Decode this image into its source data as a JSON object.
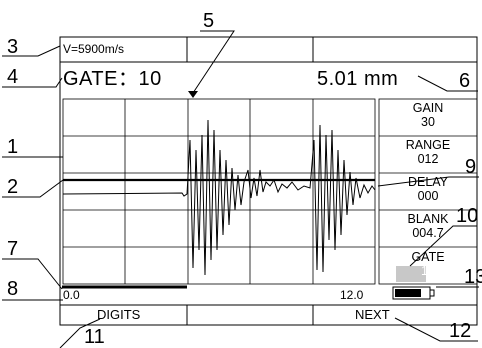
{
  "header": {
    "velocity": "V=5900m/s",
    "gate_label": "GATE：",
    "gate_value": "10",
    "thickness": "5.01 mm"
  },
  "side_panel": [
    {
      "label": "GAIN",
      "value": "30",
      "highlight": false
    },
    {
      "label": "RANGE",
      "value": "012",
      "highlight": false
    },
    {
      "label": "DELAY",
      "value": "000",
      "highlight": false
    },
    {
      "label": "BLANK",
      "value": "004.7",
      "highlight": false
    },
    {
      "label": "GATE",
      "value": "10",
      "highlight": true
    }
  ],
  "axis": {
    "start": "0.0",
    "end": "12.0"
  },
  "footer": {
    "left_button": "DIGITS",
    "right_button": "NEXT"
  },
  "callouts": [
    "1",
    "2",
    "3",
    "4",
    "5",
    "6",
    "7",
    "8",
    "9",
    "10",
    "11",
    "12",
    "13"
  ],
  "colors": {
    "line": "#000000",
    "highlight_box": "#c8c8c8",
    "highlight_text": "#ffffff"
  },
  "icons": {
    "battery": "battery-icon",
    "gate_marker": "gate-marker-icon"
  }
}
